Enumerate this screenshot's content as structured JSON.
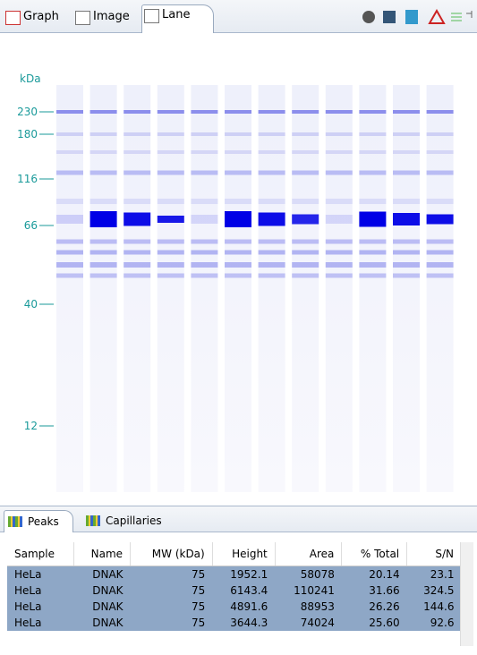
{
  "tabs": [
    "Graph",
    "Image",
    "Lane"
  ],
  "gel": {
    "unit": "kDa",
    "markers": [
      "230",
      "180",
      "116",
      "66",
      "40",
      "12"
    ]
  },
  "panel_tabs": [
    "Peaks",
    "Capillaries"
  ],
  "table": {
    "columns": [
      "Sample",
      "Name",
      "MW (kDa)",
      "Height",
      "Area",
      "% Total",
      "S/N"
    ],
    "rows": [
      [
        "HeLa",
        "DNAK",
        "75",
        "1952.1",
        "58078",
        "20.14",
        "23.1"
      ],
      [
        "HeLa",
        "DNAK",
        "75",
        "6143.4",
        "110241",
        "31.66",
        "324.5"
      ],
      [
        "HeLa",
        "DNAK",
        "75",
        "4891.6",
        "88953",
        "26.26",
        "144.6"
      ],
      [
        "HeLa",
        "DNAK",
        "75",
        "3644.3",
        "74024",
        "25.60",
        "92.6"
      ]
    ]
  }
}
